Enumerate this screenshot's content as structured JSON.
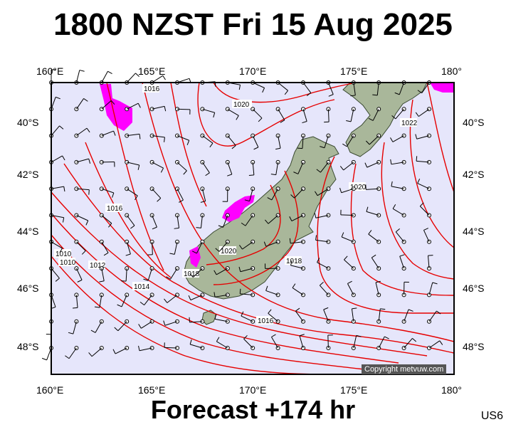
{
  "header": {
    "title": "1800 NZST Fri 15 Aug 2025"
  },
  "footer": {
    "forecast": "Forecast +174 hr",
    "code": "US6"
  },
  "axes": {
    "lon_labels": [
      "160°E",
      "165°E",
      "170°E",
      "175°E",
      "180°"
    ],
    "lat_labels": [
      "40°S",
      "42°S",
      "44°S",
      "46°S",
      "48°S"
    ]
  },
  "copyright": "Copyright metvuw.com",
  "colors": {
    "ocean": "#e6e6fb",
    "land": "#a9b79a",
    "isobar": "#e60000",
    "rain": "#ff00ff",
    "barb": "#000000"
  },
  "map_data": {
    "region": {
      "lon_min": 160,
      "lon_max": 180,
      "lat_min": -49,
      "lat_max": -38.5
    },
    "isobar_labels": [
      "1010",
      "1010",
      "1012",
      "1014",
      "1016",
      "1016",
      "1016",
      "1018",
      "1018",
      "1020",
      "1020",
      "1020",
      "1022"
    ]
  }
}
